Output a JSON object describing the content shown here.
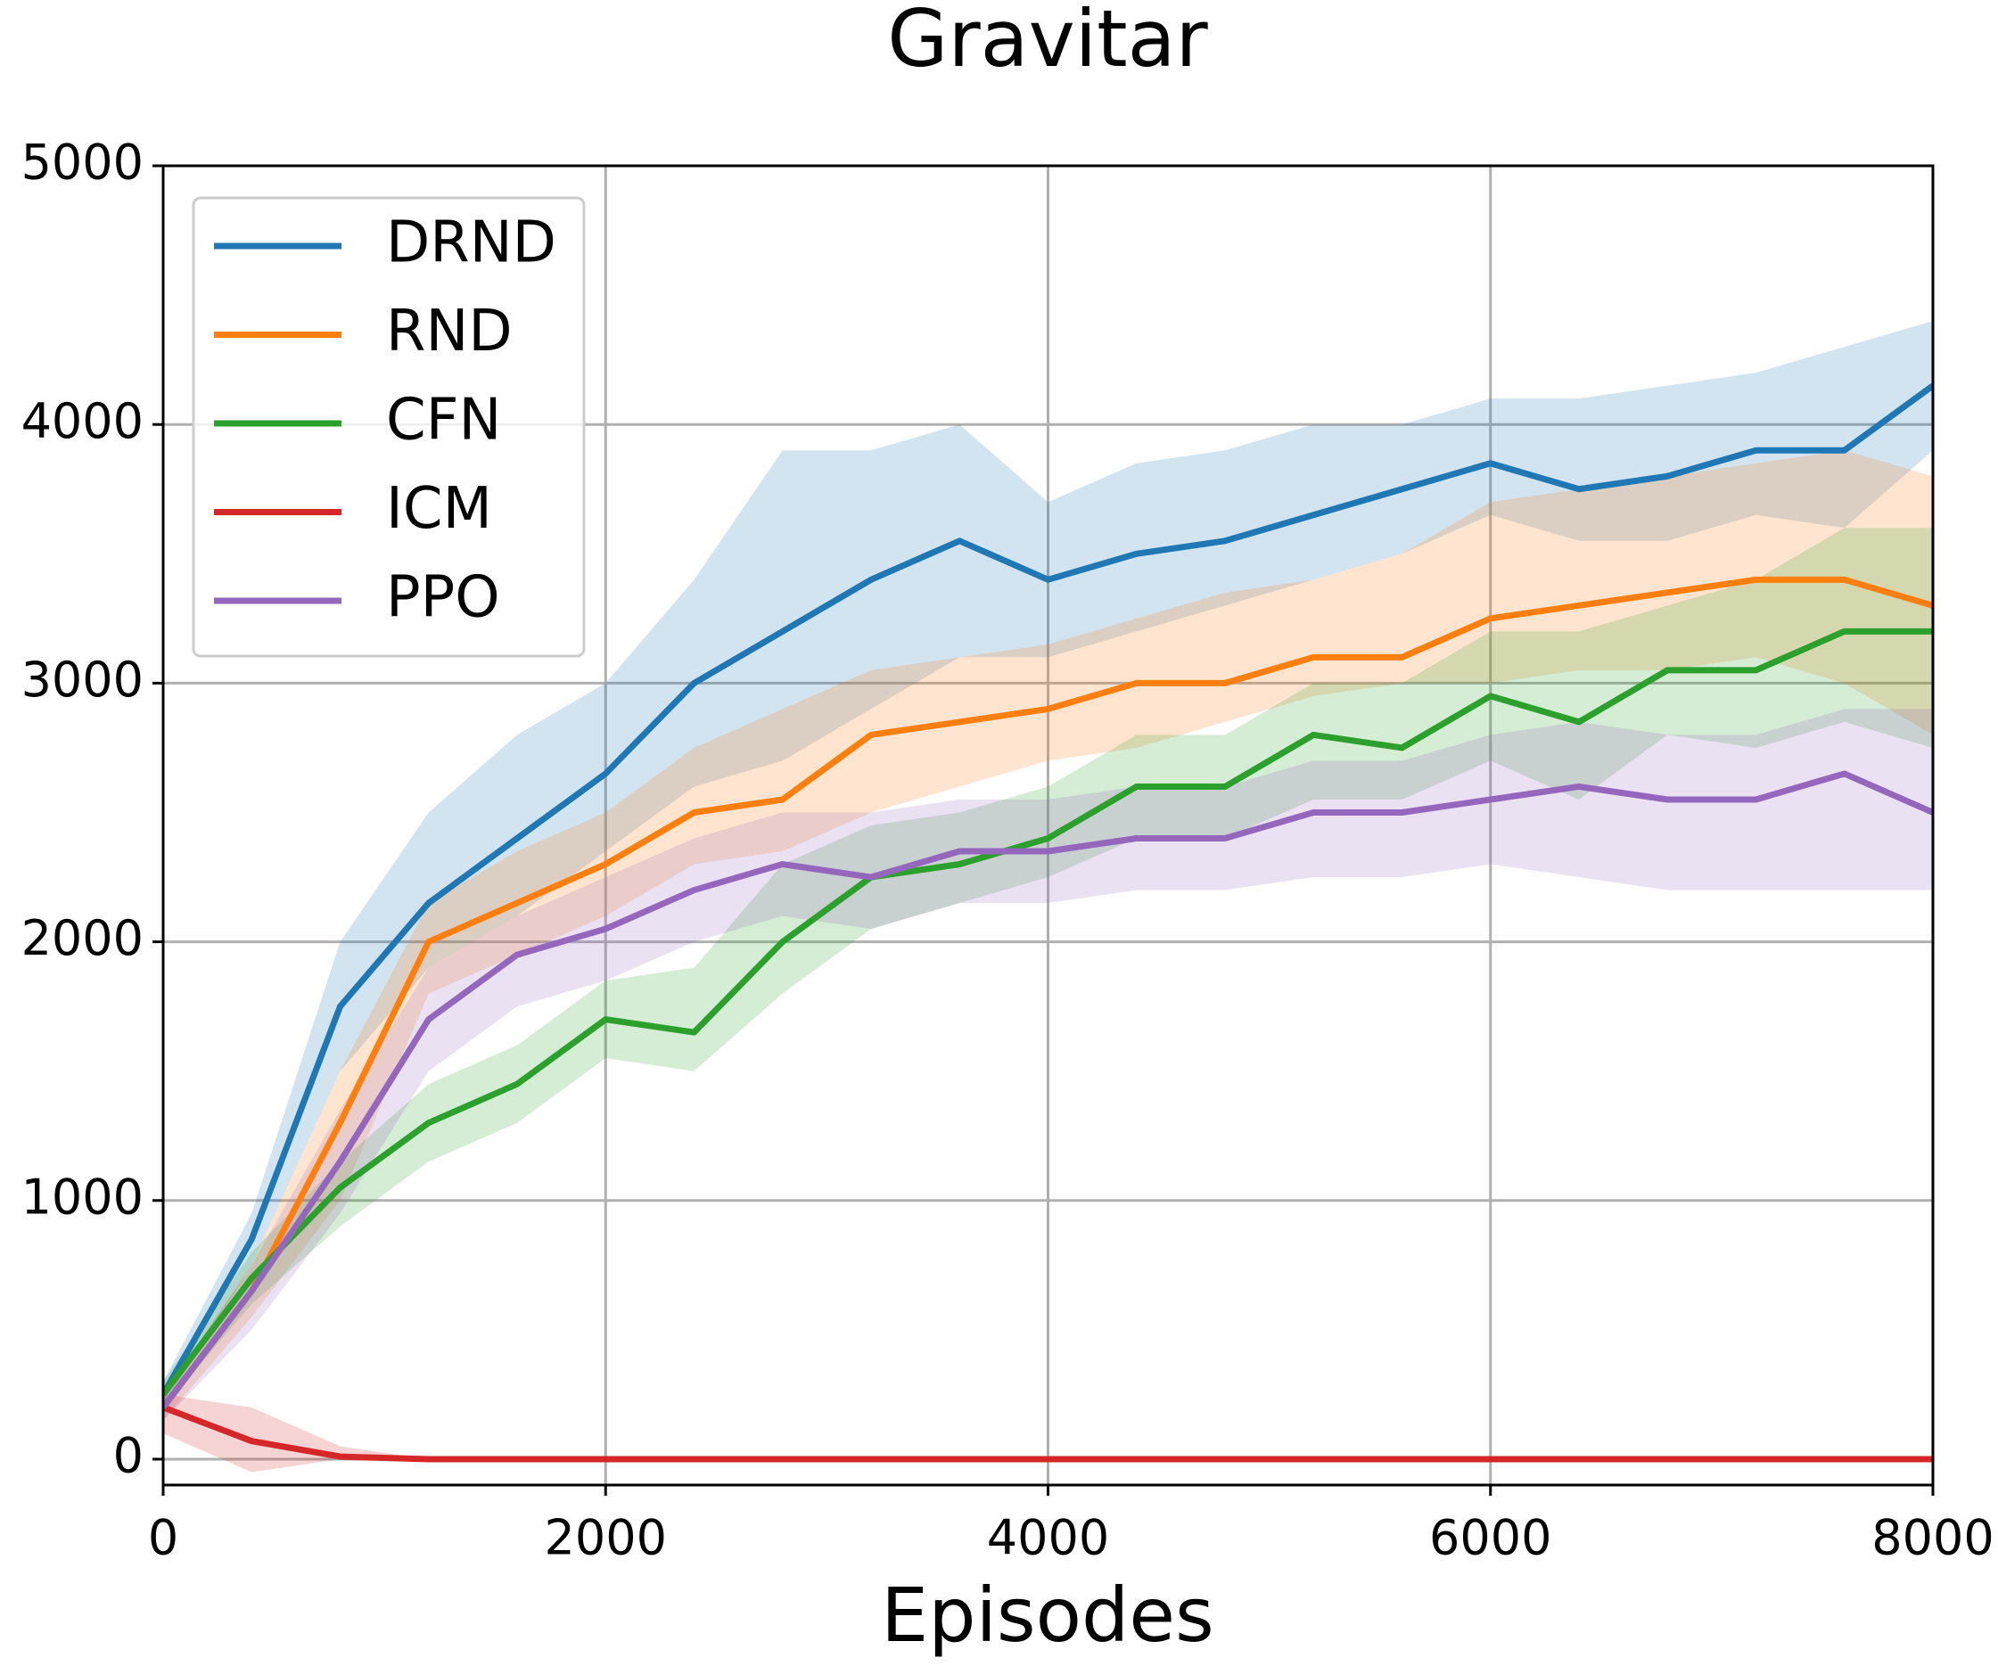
{
  "chart_data": {
    "type": "line",
    "title": "Gravitar",
    "x_label": "Episodes",
    "x": [
      0,
      400,
      800,
      1200,
      1600,
      2000,
      2400,
      2800,
      3200,
      3600,
      4000,
      4400,
      4800,
      5200,
      5600,
      6000,
      6400,
      6800,
      7200,
      7600,
      8000
    ],
    "xlim": [
      0,
      8000
    ],
    "xticks": [
      0,
      2000,
      4000,
      6000,
      8000
    ],
    "ylim": [
      -100,
      5000
    ],
    "yticks": [
      0,
      1000,
      2000,
      3000,
      4000,
      5000
    ],
    "grid": true,
    "legend": "upper left",
    "series": [
      {
        "name": "DRND",
        "color": "#1f77b4",
        "values": [
          250,
          850,
          1750,
          2150,
          2400,
          2650,
          3000,
          3200,
          3400,
          3550,
          3400,
          3500,
          3550,
          3650,
          3750,
          3850,
          3750,
          3800,
          3900,
          3900,
          4150
        ],
        "upper": [
          300,
          950,
          2000,
          2500,
          2800,
          3000,
          3400,
          3900,
          3900,
          4000,
          3700,
          3850,
          3900,
          4000,
          4000,
          4100,
          4100,
          4150,
          4200,
          4300,
          4400
        ],
        "lower": [
          200,
          750,
          1500,
          1900,
          2100,
          2350,
          2600,
          2700,
          2900,
          3100,
          3100,
          3200,
          3300,
          3400,
          3500,
          3650,
          3550,
          3550,
          3650,
          3600,
          3900
        ]
      },
      {
        "name": "RND",
        "color": "#ff7f0e",
        "values": [
          200,
          650,
          1300,
          2000,
          2150,
          2300,
          2500,
          2550,
          2800,
          2850,
          2900,
          3000,
          3000,
          3100,
          3100,
          3250,
          3300,
          3350,
          3400,
          3400,
          3300
        ],
        "upper": [
          250,
          750,
          1500,
          2150,
          2350,
          2500,
          2750,
          2900,
          3050,
          3100,
          3150,
          3250,
          3350,
          3400,
          3500,
          3700,
          3750,
          3800,
          3850,
          3900,
          3800
        ],
        "lower": [
          150,
          550,
          1000,
          1800,
          1950,
          2100,
          2300,
          2350,
          2500,
          2600,
          2700,
          2750,
          2850,
          2950,
          3000,
          3000,
          3050,
          3050,
          3100,
          3000,
          2800
        ]
      },
      {
        "name": "CFN",
        "color": "#2ca02c",
        "values": [
          250,
          700,
          1050,
          1300,
          1450,
          1700,
          1650,
          2000,
          2250,
          2300,
          2400,
          2600,
          2600,
          2800,
          2750,
          2950,
          2850,
          3050,
          3050,
          3200,
          3200
        ],
        "upper": [
          300,
          800,
          1150,
          1450,
          1600,
          1850,
          1900,
          2300,
          2450,
          2500,
          2600,
          2800,
          2800,
          3000,
          3000,
          3200,
          3200,
          3300,
          3400,
          3600,
          3600
        ],
        "lower": [
          200,
          600,
          900,
          1150,
          1300,
          1550,
          1500,
          1800,
          2050,
          2150,
          2250,
          2400,
          2400,
          2550,
          2550,
          2700,
          2550,
          2800,
          2750,
          2850,
          2750
        ]
      },
      {
        "name": "ICM",
        "color": "#d62728",
        "values": [
          200,
          70,
          10,
          0,
          0,
          0,
          0,
          0,
          0,
          0,
          0,
          0,
          0,
          0,
          0,
          0,
          0,
          0,
          0,
          0,
          0
        ],
        "upper": [
          250,
          200,
          50,
          0,
          0,
          0,
          0,
          0,
          0,
          0,
          0,
          0,
          0,
          0,
          0,
          0,
          0,
          0,
          0,
          0,
          0
        ],
        "lower": [
          100,
          -50,
          0,
          0,
          0,
          0,
          0,
          0,
          0,
          0,
          0,
          0,
          0,
          0,
          0,
          0,
          0,
          0,
          0,
          0,
          0
        ]
      },
      {
        "name": "PPO",
        "color": "#9467bd",
        "values": [
          200,
          650,
          1150,
          1700,
          1950,
          2050,
          2200,
          2300,
          2250,
          2350,
          2350,
          2400,
          2400,
          2500,
          2500,
          2550,
          2600,
          2550,
          2550,
          2650,
          2500
        ],
        "upper": [
          250,
          750,
          1350,
          1900,
          2100,
          2250,
          2400,
          2500,
          2500,
          2550,
          2550,
          2600,
          2600,
          2700,
          2700,
          2800,
          2850,
          2800,
          2800,
          2900,
          2900
        ],
        "lower": [
          150,
          500,
          950,
          1500,
          1750,
          1850,
          2000,
          2100,
          2050,
          2150,
          2150,
          2200,
          2200,
          2250,
          2250,
          2300,
          2250,
          2200,
          2200,
          2200,
          2200
        ]
      }
    ]
  }
}
